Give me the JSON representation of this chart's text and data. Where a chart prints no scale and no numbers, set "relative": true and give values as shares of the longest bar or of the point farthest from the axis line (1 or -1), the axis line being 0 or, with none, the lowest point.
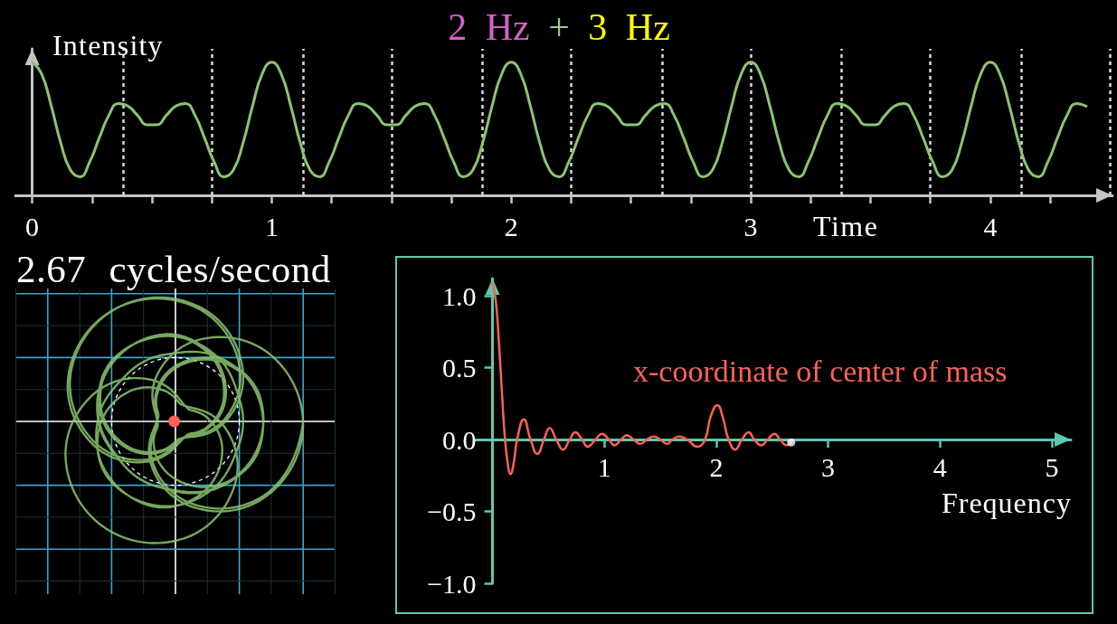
{
  "chart_data": [
    {
      "type": "line",
      "title": "2 Hz + 3 Hz",
      "xlabel": "Time",
      "ylabel": "Intensity",
      "relative": true,
      "marker": "none",
      "color": "#8cc46f",
      "x": [
        0,
        0.04,
        0.08,
        0.12,
        0.16,
        0.2,
        0.24,
        0.28,
        0.32,
        0.36,
        0.4,
        0.44,
        0.48,
        0.52,
        0.56,
        0.6,
        0.64,
        0.68,
        0.72,
        0.76,
        0.8,
        0.84,
        0.88,
        0.92,
        0.96,
        1,
        1.04,
        1.08,
        1.12,
        1.16,
        1.2,
        1.24,
        1.28,
        1.32,
        1.36,
        1.4,
        1.44,
        1.48,
        1.52,
        1.56,
        1.6,
        1.64,
        1.68,
        1.72,
        1.76,
        1.8,
        1.84,
        1.88,
        1.92,
        1.96,
        2,
        2.04,
        2.08,
        2.12,
        2.16,
        2.2,
        2.24,
        2.28,
        2.32,
        2.36,
        2.4,
        2.44,
        2.48,
        2.52,
        2.56,
        2.6,
        2.64,
        2.68,
        2.72,
        2.76,
        2.8,
        2.84,
        2.88,
        2.92,
        2.96,
        3,
        3.04,
        3.08,
        3.12,
        3.16,
        3.2,
        3.24,
        3.28,
        3.32,
        3.36,
        3.4,
        3.44,
        3.48,
        3.52,
        3.56,
        3.6,
        3.64,
        3.68,
        3.72,
        3.76,
        3.8,
        3.84,
        3.88,
        3.92,
        3.96,
        4,
        4.04,
        4.08,
        4.12,
        4.16,
        4.2,
        4.24,
        4.28,
        4.32,
        4.36,
        4.4
      ],
      "values": [
        1,
        0.91,
        0.67,
        0.39,
        0.19,
        0.14,
        0.25,
        0.43,
        0.6,
        0.69,
        0.67,
        0.6,
        0.53,
        0.53,
        0.6,
        0.67,
        0.69,
        0.6,
        0.43,
        0.25,
        0.14,
        0.19,
        0.39,
        0.67,
        0.91,
        1,
        0.91,
        0.67,
        0.39,
        0.19,
        0.14,
        0.25,
        0.43,
        0.6,
        0.69,
        0.67,
        0.6,
        0.53,
        0.53,
        0.6,
        0.67,
        0.69,
        0.6,
        0.43,
        0.25,
        0.14,
        0.19,
        0.39,
        0.67,
        0.91,
        1,
        0.91,
        0.67,
        0.39,
        0.19,
        0.14,
        0.25,
        0.43,
        0.6,
        0.69,
        0.67,
        0.6,
        0.53,
        0.53,
        0.6,
        0.67,
        0.69,
        0.6,
        0.43,
        0.25,
        0.14,
        0.19,
        0.39,
        0.67,
        0.91,
        1,
        0.91,
        0.67,
        0.39,
        0.19,
        0.14,
        0.25,
        0.43,
        0.6,
        0.69,
        0.67,
        0.6,
        0.53,
        0.53,
        0.6,
        0.67,
        0.69,
        0.6,
        0.43,
        0.25,
        0.14,
        0.19,
        0.39,
        0.67,
        0.91,
        1,
        0.91,
        0.67,
        0.39,
        0.19,
        0.14,
        0.25,
        0.43,
        0.6,
        0.69,
        0.67
      ],
      "xlim": [
        -0.07,
        4.51
      ],
      "xticks": [
        0,
        {
          "value": 0.25,
          "label": null
        },
        {
          "value": 0.5,
          "label": null
        },
        {
          "value": 0.75,
          "label": null
        },
        1,
        {
          "value": 1.25,
          "label": null
        },
        {
          "value": 1.5,
          "label": null
        },
        {
          "value": 1.75,
          "label": null
        },
        2,
        {
          "value": 2.25,
          "label": null
        },
        {
          "value": 2.5,
          "label": null
        },
        {
          "value": 2.75,
          "label": null
        },
        3,
        {
          "value": 3.25,
          "label": null
        },
        {
          "value": 3.5,
          "label": null
        },
        {
          "value": 3.75,
          "label": null
        },
        4,
        {
          "value": 4.25,
          "label": null
        }
      ],
      "ref_lines": [
        {
          "axis": "x",
          "value": 0.375,
          "color": "#d9d9d9",
          "line_style": "dashed"
        },
        {
          "axis": "x",
          "value": 0.75,
          "color": "#d9d9d9",
          "line_style": "dashed"
        },
        {
          "axis": "x",
          "value": 1.125,
          "color": "#d9d9d9",
          "line_style": "dashed"
        },
        {
          "axis": "x",
          "value": 1.5,
          "color": "#d9d9d9",
          "line_style": "dashed"
        },
        {
          "axis": "x",
          "value": 1.875,
          "color": "#d9d9d9",
          "line_style": "dashed"
        },
        {
          "axis": "x",
          "value": 2.25,
          "color": "#d9d9d9",
          "line_style": "dashed"
        },
        {
          "axis": "x",
          "value": 2.625,
          "color": "#d9d9d9",
          "line_style": "dashed"
        },
        {
          "axis": "x",
          "value": 3,
          "color": "#d9d9d9",
          "line_style": "dashed"
        },
        {
          "axis": "x",
          "value": 3.375,
          "color": "#d9d9d9",
          "line_style": "dashed"
        },
        {
          "axis": "x",
          "value": 3.75,
          "color": "#d9d9d9",
          "line_style": "dashed"
        },
        {
          "axis": "x",
          "value": 4.125,
          "color": "#d9d9d9",
          "line_style": "dashed"
        },
        {
          "axis": "x",
          "value": 4.5,
          "color": "#d9d9d9",
          "line_style": "dashed"
        }
      ]
    },
    {
      "type": "other",
      "title": "2.67 cycles/second"
    },
    {
      "type": "line",
      "xlabel": "Frequency",
      "marker": "none",
      "xlim": [
        -0.15,
        5.17
      ],
      "ylim": [
        -1,
        1.12
      ],
      "xticks": [
        1,
        2,
        3,
        4,
        5
      ],
      "yticks": [
        {
          "value": -1,
          "label": "−1.0"
        },
        {
          "value": -0.5,
          "label": "−0.5"
        },
        {
          "value": 0,
          "label": "0.0"
        },
        {
          "value": 0.5,
          "label": "0.5"
        },
        {
          "value": 1,
          "label": "1.0"
        }
      ],
      "series": [
        {
          "name": "x-coordinate of center of mass",
          "color": "#fc6255",
          "x": [
            0,
            0.03,
            0.06,
            0.09,
            0.11,
            0.14,
            0.16,
            0.19,
            0.22,
            0.28,
            0.34,
            0.4,
            0.46,
            0.51,
            0.57,
            0.63,
            0.69,
            0.74,
            0.8,
            0.85,
            0.92,
            0.98,
            1.04,
            1.09,
            1.15,
            1.2,
            1.26,
            1.32,
            1.38,
            1.44,
            1.5,
            1.56,
            1.61,
            1.67,
            1.74,
            1.83,
            1.9,
            1.95,
            2.01,
            2.06,
            2.11,
            2.17,
            2.23,
            2.29,
            2.34,
            2.4,
            2.46,
            2.52,
            2.57,
            2.63,
            2.67
          ],
          "values": [
            1.08,
            0.96,
            0.64,
            0.25,
            0.02,
            -0.19,
            -0.24,
            -0.16,
            0,
            0.14,
            0,
            -0.1,
            0,
            0.08,
            0,
            -0.07,
            0,
            0.05,
            0,
            -0.05,
            0,
            0.04,
            0,
            -0.04,
            0,
            0.03,
            0,
            -0.03,
            0,
            0.02,
            0,
            -0.03,
            0,
            0.02,
            0,
            -0.05,
            0,
            0.16,
            0.24,
            0.15,
            0,
            -0.07,
            0,
            0.05,
            0,
            -0.04,
            0,
            0.04,
            0,
            -0.04,
            -0.02
          ]
        },
        {
          "type": "scatter",
          "marker": "circle",
          "color": "#ffffff",
          "x": [
            2.67
          ],
          "values": [
            -0.02
          ]
        }
      ]
    }
  ]
}
